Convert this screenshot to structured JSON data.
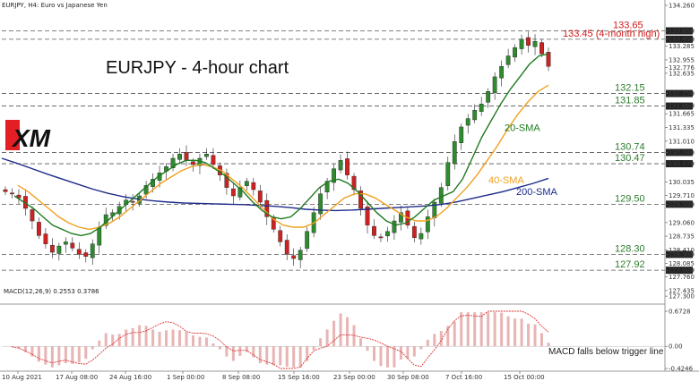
{
  "header": {
    "symbol": "EURJPY, H4:  Euro vs Japanese Yen"
  },
  "title": "EURJPY - 4-hour chart",
  "logo": {
    "text": "XM",
    "accent": "#e31e24"
  },
  "macd_label": "MACD(12,26,9) 0.2553 0.3786",
  "macd_note": "MACD falls below trigger line",
  "colors": {
    "sma20": "#1f7a1f",
    "sma40": "#f0a020",
    "sma200": "#1c2b8a",
    "bull": "#2e8b2e",
    "bear": "#cc2222",
    "level": "#555555",
    "red_level": "#d11a1a",
    "macd_hist": "#e8b4b4"
  },
  "chart_data": {
    "type": "candlestick",
    "title": "EURJPY - 4-hour chart",
    "ylim": [
      127.11,
      134.26
    ],
    "y_ticks": [
      "134.260",
      "133.650",
      "133.450",
      "133.285",
      "132.955",
      "132.776",
      "132.635",
      "132.150",
      "131.860",
      "131.665",
      "131.335",
      "131.010",
      "130.740",
      "130.470",
      "130.035",
      "129.710",
      "129.500",
      "129.060",
      "128.735",
      "128.410",
      "128.300",
      "128.085",
      "127.920",
      "127.760",
      "127.435",
      "127.300"
    ],
    "x_ticks": [
      "10 Aug 2021",
      "17 Aug 08:00",
      "24 Aug 16:00",
      "1 Sep 00:00",
      "8 Sep 08:00",
      "15 Sep 16:00",
      "23 Sep 00:00",
      "30 Sep 08:00",
      "7 Oct 16:00",
      "15 Oct 00:00"
    ],
    "levels": [
      {
        "value": 133.65,
        "label": "133.65",
        "color": "#d11a1a"
      },
      {
        "value": 133.45,
        "label": "133.45 (4-month high)",
        "color": "#d11a1a"
      },
      {
        "value": 132.15,
        "label": "132.15",
        "color": "#2e7d2e"
      },
      {
        "value": 131.85,
        "label": "131.85",
        "color": "#2e7d2e"
      },
      {
        "value": 130.74,
        "label": "130.74",
        "color": "#2e7d2e"
      },
      {
        "value": 130.47,
        "label": "130.47",
        "color": "#2e7d2e"
      },
      {
        "value": 129.5,
        "label": "129.50",
        "color": "#2e7d2e"
      },
      {
        "value": 128.3,
        "label": "128.30",
        "color": "#2e7d2e"
      },
      {
        "value": 127.92,
        "label": "127.92",
        "color": "#2e7d2e"
      }
    ],
    "series_labels": [
      {
        "name": "20-SMA",
        "value": 131.25,
        "color": "#1f7a1f"
      },
      {
        "name": "40-SMA",
        "value": 130.0,
        "color": "#f0a020"
      },
      {
        "name": "200-SMA",
        "value": 129.72,
        "color": "#1c2b8a"
      }
    ],
    "close_path": [
      129.8,
      129.75,
      129.65,
      129.4,
      129.1,
      128.75,
      128.55,
      128.35,
      128.5,
      128.6,
      128.45,
      128.3,
      128.25,
      128.55,
      128.95,
      129.25,
      129.3,
      129.45,
      129.6,
      129.55,
      129.7,
      129.95,
      130.1,
      130.25,
      130.4,
      130.6,
      130.7,
      130.55,
      130.45,
      130.6,
      130.7,
      130.45,
      130.2,
      129.9,
      129.7,
      129.9,
      130.05,
      129.85,
      129.55,
      129.2,
      128.9,
      128.6,
      128.3,
      128.2,
      128.4,
      128.85,
      129.3,
      129.75,
      130.05,
      130.35,
      130.55,
      130.2,
      129.85,
      129.4,
      129.0,
      128.75,
      128.7,
      128.85,
      129.1,
      129.3,
      129.0,
      128.7,
      128.8,
      129.2,
      129.55,
      129.9,
      130.5,
      131.0,
      131.35,
      131.55,
      131.75,
      131.9,
      132.2,
      132.55,
      132.8,
      133.05,
      133.25,
      133.45,
      133.3,
      133.4,
      133.1,
      132.8
    ],
    "sma20": [
      129.7,
      129.55,
      129.4,
      129.2,
      129.0,
      128.9,
      128.8,
      128.75,
      128.8,
      128.95,
      129.15,
      129.35,
      129.55,
      129.75,
      129.95,
      130.15,
      130.3,
      130.45,
      130.55,
      130.55,
      130.5,
      130.35,
      130.2,
      130.0,
      129.8,
      129.55,
      129.35,
      129.2,
      129.15,
      129.2,
      129.4,
      129.65,
      129.9,
      130.05,
      130.1,
      130.0,
      129.8,
      129.55,
      129.3,
      129.1,
      129.0,
      129.05,
      129.2,
      129.4,
      129.6,
      129.7,
      129.8,
      130.1,
      130.6,
      131.1,
      131.5,
      131.9,
      132.25,
      132.55,
      132.85,
      133.05,
      133.1
    ],
    "sma40": [
      129.95,
      129.8,
      129.6,
      129.4,
      129.2,
      129.05,
      128.95,
      128.9,
      128.95,
      129.05,
      129.2,
      129.4,
      129.6,
      129.8,
      130.0,
      130.15,
      130.3,
      130.4,
      130.45,
      130.4,
      130.3,
      130.1,
      129.9,
      129.65,
      129.4,
      129.15,
      129.0,
      128.95,
      128.95,
      129.05,
      129.25,
      129.45,
      129.65,
      129.75,
      129.75,
      129.65,
      129.5,
      129.35,
      129.2,
      129.1,
      129.1,
      129.2,
      129.4,
      129.65,
      129.9,
      130.2,
      130.55,
      130.9,
      131.3,
      131.65,
      131.95,
      132.2,
      132.35
    ],
    "sma200": [
      130.6,
      130.48,
      130.35,
      130.22,
      130.1,
      129.98,
      129.86,
      129.76,
      129.68,
      129.62,
      129.58,
      129.55,
      129.53,
      129.52,
      129.51,
      129.5,
      129.49,
      129.47,
      129.45,
      129.42,
      129.38,
      129.36,
      129.35,
      129.36,
      129.38,
      129.4,
      129.42,
      129.44,
      129.46,
      129.5,
      129.56,
      129.64,
      129.72,
      129.8,
      129.9,
      130.0,
      130.12
    ],
    "macd": {
      "label": "MACD(12,26,9) 0.2553 0.3786",
      "ylim": [
        -0.4246,
        0.6728
      ],
      "ticks": [
        "0.6728",
        "0.00",
        "-0.4246"
      ]
    }
  }
}
